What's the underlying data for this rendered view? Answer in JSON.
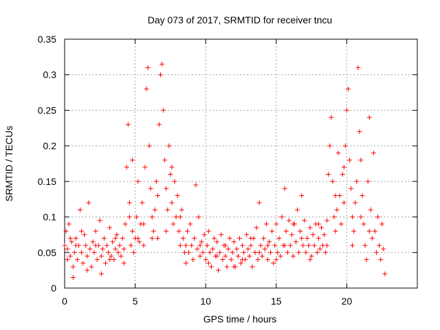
{
  "chart_data": {
    "type": "scatter",
    "title": "Day 073 of 2017, SRMTID for receiver tncu",
    "xlabel": "GPS time / hours",
    "ylabel": "SRMTID / TECUs",
    "xlim": [
      0,
      25
    ],
    "ylim": [
      0,
      0.35
    ],
    "x_ticks": [
      0,
      5,
      10,
      15,
      20
    ],
    "x_tick_labels": [
      "0",
      "5",
      "10",
      "15",
      "20"
    ],
    "y_ticks": [
      0,
      0.05,
      0.1,
      0.15,
      0.2,
      0.25,
      0.3,
      0.35
    ],
    "y_tick_labels": [
      "0",
      "0.05",
      "0.1",
      "0.15",
      "0.2",
      "0.25",
      "0.3",
      "0.35"
    ],
    "grid": true,
    "marker": "+",
    "color": "#ff0000",
    "points": [
      [
        0.0,
        0.06
      ],
      [
        0.1,
        0.08
      ],
      [
        0.2,
        0.055
      ],
      [
        0.3,
        0.09
      ],
      [
        0.4,
        0.045
      ],
      [
        0.5,
        0.065
      ],
      [
        0.6,
        0.03
      ],
      [
        0.7,
        0.05
      ],
      [
        0.8,
        0.07
      ],
      [
        0.9,
        0.04
      ],
      [
        1.0,
        0.06
      ],
      [
        1.1,
        0.11
      ],
      [
        1.2,
        0.05
      ],
      [
        1.3,
        0.035
      ],
      [
        1.4,
        0.075
      ],
      [
        1.5,
        0.06
      ],
      [
        1.6,
        0.045
      ],
      [
        1.7,
        0.12
      ],
      [
        1.8,
        0.055
      ],
      [
        1.9,
        0.03
      ],
      [
        2.0,
        0.065
      ],
      [
        2.1,
        0.05
      ],
      [
        2.2,
        0.08
      ],
      [
        2.3,
        0.04
      ],
      [
        2.4,
        0.06
      ],
      [
        2.5,
        0.095
      ],
      [
        2.6,
        0.045
      ],
      [
        2.7,
        0.055
      ],
      [
        2.8,
        0.07
      ],
      [
        2.9,
        0.035
      ],
      [
        3.0,
        0.06
      ],
      [
        3.1,
        0.05
      ],
      [
        3.2,
        0.085
      ],
      [
        3.3,
        0.045
      ],
      [
        3.4,
        0.065
      ],
      [
        3.5,
        0.04
      ],
      [
        3.6,
        0.055
      ],
      [
        3.7,
        0.075
      ],
      [
        3.8,
        0.05
      ],
      [
        3.9,
        0.06
      ],
      [
        4.0,
        0.045
      ],
      [
        4.1,
        0.07
      ],
      [
        4.2,
        0.055
      ],
      [
        4.3,
        0.09
      ],
      [
        4.4,
        0.17
      ],
      [
        4.5,
        0.23
      ],
      [
        4.6,
        0.12
      ],
      [
        4.7,
        0.06
      ],
      [
        4.8,
        0.08
      ],
      [
        4.9,
        0.05
      ],
      [
        5.0,
        0.07
      ],
      [
        5.1,
        0.1
      ],
      [
        5.2,
        0.15
      ],
      [
        5.3,
        0.065
      ],
      [
        5.4,
        0.09
      ],
      [
        5.5,
        0.12
      ],
      [
        5.6,
        0.06
      ],
      [
        5.7,
        0.17
      ],
      [
        5.8,
        0.28
      ],
      [
        5.9,
        0.31
      ],
      [
        6.0,
        0.2
      ],
      [
        6.1,
        0.14
      ],
      [
        6.2,
        0.1
      ],
      [
        6.3,
        0.08
      ],
      [
        6.4,
        0.11
      ],
      [
        6.5,
        0.15
      ],
      [
        6.6,
        0.07
      ],
      [
        6.7,
        0.23
      ],
      [
        6.8,
        0.3
      ],
      [
        6.9,
        0.315
      ],
      [
        7.0,
        0.25
      ],
      [
        7.1,
        0.18
      ],
      [
        7.2,
        0.14
      ],
      [
        7.3,
        0.11
      ],
      [
        7.4,
        0.2
      ],
      [
        7.5,
        0.16
      ],
      [
        7.6,
        0.12
      ],
      [
        7.7,
        0.09
      ],
      [
        7.8,
        0.15
      ],
      [
        7.9,
        0.1
      ],
      [
        8.0,
        0.13
      ],
      [
        8.1,
        0.08
      ],
      [
        8.2,
        0.06
      ],
      [
        8.3,
        0.11
      ],
      [
        8.4,
        0.07
      ],
      [
        8.5,
        0.05
      ],
      [
        8.6,
        0.035
      ],
      [
        8.7,
        0.08
      ],
      [
        8.8,
        0.05
      ],
      [
        8.9,
        0.09
      ],
      [
        9.0,
        0.06
      ],
      [
        9.1,
        0.04
      ],
      [
        9.2,
        0.07
      ],
      [
        9.3,
        0.145
      ],
      [
        9.4,
        0.055
      ],
      [
        9.5,
        0.1
      ],
      [
        9.6,
        0.045
      ],
      [
        9.7,
        0.065
      ],
      [
        9.8,
        0.05
      ],
      [
        9.9,
        0.075
      ],
      [
        10.0,
        0.04
      ],
      [
        10.1,
        0.06
      ],
      [
        10.2,
        0.08
      ],
      [
        10.3,
        0.05
      ],
      [
        10.4,
        0.03
      ],
      [
        10.5,
        0.055
      ],
      [
        10.6,
        0.07
      ],
      [
        10.7,
        0.045
      ],
      [
        10.8,
        0.065
      ],
      [
        10.9,
        0.025
      ],
      [
        11.0,
        0.05
      ],
      [
        11.1,
        0.075
      ],
      [
        11.2,
        0.04
      ],
      [
        11.3,
        0.06
      ],
      [
        11.4,
        0.045
      ],
      [
        11.5,
        0.03
      ],
      [
        11.6,
        0.055
      ],
      [
        11.7,
        0.07
      ],
      [
        11.8,
        0.04
      ],
      [
        11.9,
        0.05
      ],
      [
        12.0,
        0.065
      ],
      [
        12.1,
        0.03
      ],
      [
        12.2,
        0.055
      ],
      [
        12.3,
        0.045
      ],
      [
        12.4,
        0.07
      ],
      [
        12.5,
        0.035
      ],
      [
        12.6,
        0.06
      ],
      [
        12.7,
        0.05
      ],
      [
        12.8,
        0.04
      ],
      [
        12.9,
        0.075
      ],
      [
        13.0,
        0.055
      ],
      [
        13.1,
        0.045
      ],
      [
        13.2,
        0.06
      ],
      [
        13.3,
        0.03
      ],
      [
        13.4,
        0.07
      ],
      [
        13.5,
        0.05
      ],
      [
        13.6,
        0.085
      ],
      [
        13.7,
        0.04
      ],
      [
        13.8,
        0.12
      ],
      [
        13.9,
        0.06
      ],
      [
        14.0,
        0.045
      ],
      [
        14.1,
        0.07
      ],
      [
        14.2,
        0.055
      ],
      [
        14.3,
        0.09
      ],
      [
        14.4,
        0.04
      ],
      [
        14.5,
        0.065
      ],
      [
        14.6,
        0.05
      ],
      [
        14.7,
        0.08
      ],
      [
        14.8,
        0.035
      ],
      [
        14.9,
        0.06
      ],
      [
        15.0,
        0.09
      ],
      [
        15.1,
        0.05
      ],
      [
        15.2,
        0.07
      ],
      [
        15.3,
        0.045
      ],
      [
        15.4,
        0.1
      ],
      [
        15.5,
        0.06
      ],
      [
        15.6,
        0.14
      ],
      [
        15.7,
        0.08
      ],
      [
        15.8,
        0.05
      ],
      [
        15.9,
        0.095
      ],
      [
        16.0,
        0.06
      ],
      [
        16.1,
        0.075
      ],
      [
        16.2,
        0.045
      ],
      [
        16.3,
        0.09
      ],
      [
        16.4,
        0.065
      ],
      [
        16.5,
        0.11
      ],
      [
        16.6,
        0.05
      ],
      [
        16.7,
        0.08
      ],
      [
        16.8,
        0.13
      ],
      [
        16.9,
        0.06
      ],
      [
        17.0,
        0.095
      ],
      [
        17.1,
        0.05
      ],
      [
        17.2,
        0.07
      ],
      [
        17.3,
        0.06
      ],
      [
        17.4,
        0.085
      ],
      [
        17.5,
        0.045
      ],
      [
        17.6,
        0.075
      ],
      [
        17.7,
        0.06
      ],
      [
        17.8,
        0.09
      ],
      [
        17.9,
        0.05
      ],
      [
        18.0,
        0.07
      ],
      [
        18.1,
        0.055
      ],
      [
        18.2,
        0.085
      ],
      [
        18.3,
        0.06
      ],
      [
        18.4,
        0.075
      ],
      [
        18.5,
        0.05
      ],
      [
        18.6,
        0.095
      ],
      [
        18.7,
        0.16
      ],
      [
        18.8,
        0.2
      ],
      [
        18.9,
        0.24
      ],
      [
        19.0,
        0.15
      ],
      [
        19.1,
        0.1
      ],
      [
        19.2,
        0.08
      ],
      [
        19.3,
        0.11
      ],
      [
        19.4,
        0.19
      ],
      [
        19.5,
        0.13
      ],
      [
        19.6,
        0.09
      ],
      [
        19.7,
        0.16
      ],
      [
        19.8,
        0.12
      ],
      [
        19.9,
        0.2
      ],
      [
        20.0,
        0.25
      ],
      [
        20.1,
        0.28
      ],
      [
        20.2,
        0.18
      ],
      [
        20.3,
        0.14
      ],
      [
        20.4,
        0.1
      ],
      [
        20.5,
        0.08
      ],
      [
        20.6,
        0.12
      ],
      [
        20.7,
        0.15
      ],
      [
        20.8,
        0.31
      ],
      [
        20.9,
        0.22
      ],
      [
        21.0,
        0.18
      ],
      [
        21.1,
        0.13
      ],
      [
        21.2,
        0.09
      ],
      [
        21.3,
        0.06
      ],
      [
        21.4,
        0.04
      ],
      [
        21.5,
        0.15
      ],
      [
        21.6,
        0.24
      ],
      [
        21.7,
        0.11
      ],
      [
        21.8,
        0.07
      ],
      [
        21.9,
        0.19
      ],
      [
        22.0,
        0.08
      ],
      [
        22.1,
        0.05
      ],
      [
        22.2,
        0.1
      ],
      [
        22.3,
        0.06
      ],
      [
        22.4,
        0.04
      ],
      [
        22.5,
        0.09
      ],
      [
        22.6,
        0.055
      ],
      [
        22.7,
        0.02
      ],
      [
        0.2,
        0.04
      ],
      [
        0.4,
        0.07
      ],
      [
        0.6,
        0.015
      ],
      [
        0.8,
        0.06
      ],
      [
        1.2,
        0.08
      ],
      [
        1.6,
        0.025
      ],
      [
        2.2,
        0.06
      ],
      [
        2.6,
        0.02
      ],
      [
        3.2,
        0.04
      ],
      [
        3.6,
        0.07
      ],
      [
        4.2,
        0.035
      ],
      [
        4.6,
        0.1
      ],
      [
        4.8,
        0.18
      ],
      [
        5.2,
        0.07
      ],
      [
        5.6,
        0.09
      ],
      [
        6.2,
        0.07
      ],
      [
        6.6,
        0.13
      ],
      [
        7.2,
        0.08
      ],
      [
        7.6,
        0.17
      ],
      [
        8.2,
        0.1
      ],
      [
        8.6,
        0.06
      ],
      [
        9.6,
        0.06
      ],
      [
        10.2,
        0.035
      ],
      [
        10.8,
        0.045
      ],
      [
        11.4,
        0.06
      ],
      [
        12.0,
        0.03
      ],
      [
        12.6,
        0.04
      ],
      [
        13.2,
        0.07
      ],
      [
        13.8,
        0.05
      ],
      [
        14.4,
        0.06
      ],
      [
        15.0,
        0.04
      ],
      [
        15.6,
        0.06
      ],
      [
        16.2,
        0.09
      ],
      [
        16.8,
        0.07
      ],
      [
        17.4,
        0.04
      ],
      [
        18.0,
        0.09
      ],
      [
        18.6,
        0.06
      ],
      [
        19.2,
        0.13
      ],
      [
        19.8,
        0.17
      ],
      [
        20.4,
        0.06
      ],
      [
        21.0,
        0.1
      ],
      [
        21.6,
        0.08
      ]
    ]
  }
}
